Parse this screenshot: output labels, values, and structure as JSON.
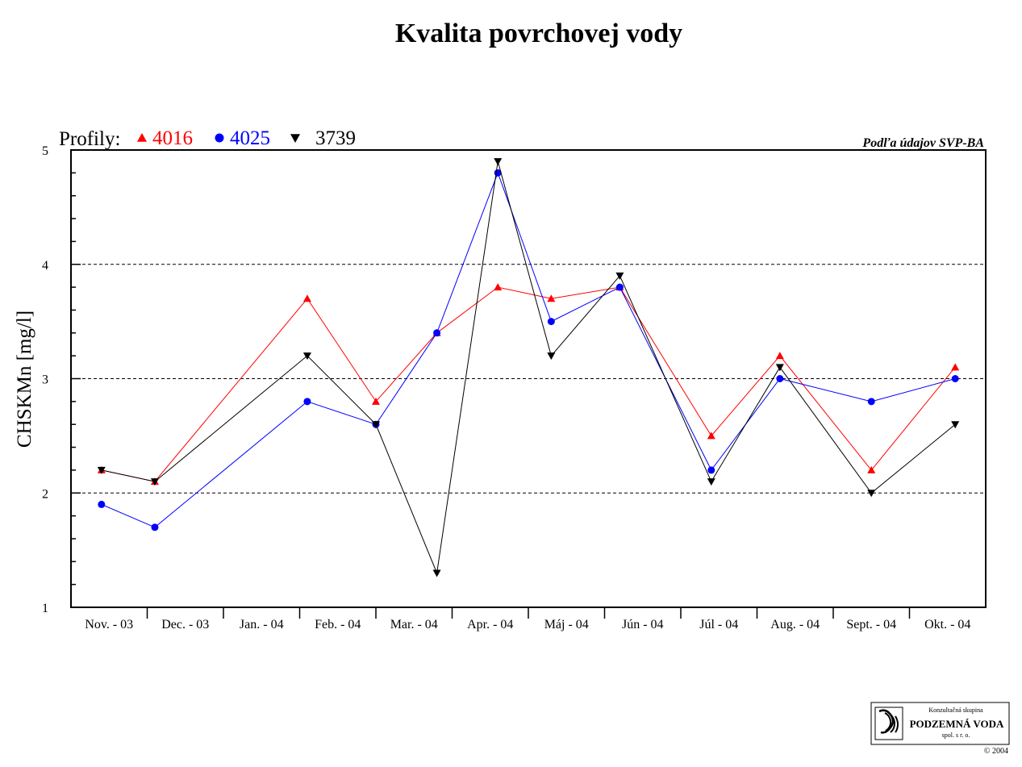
{
  "chart_data": {
    "type": "line",
    "title": "Kvalita povrchovej vody",
    "ylabel": "CHSKMn [mg/l]",
    "ylim": [
      1,
      5
    ],
    "yticks": [
      "1",
      "2",
      "3",
      "4",
      "5"
    ],
    "legend_prefix": "Profily:",
    "source_note": "Podľa údajov SVP-BA",
    "categories": [
      "Nov. - 03",
      "Dec. - 03",
      "Jan. - 04",
      "Feb. - 04",
      "Mar. - 04",
      "Apr. - 04",
      "Máj - 04",
      "Jún - 04",
      "Júl - 04",
      "Aug. - 04",
      "Sept. - 04",
      "Okt. - 04"
    ],
    "series": [
      {
        "name": "4016",
        "color": "#ff0000",
        "marker": "triangle-up",
        "points": [
          [
            0.4,
            2.2
          ],
          [
            1.1,
            2.1
          ],
          [
            3.1,
            3.7
          ],
          [
            4.0,
            2.8
          ],
          [
            4.8,
            3.4
          ],
          [
            5.6,
            3.8
          ],
          [
            6.3,
            3.7
          ],
          [
            7.2,
            3.8
          ],
          [
            8.4,
            2.5
          ],
          [
            9.3,
            3.2
          ],
          [
            10.5,
            2.2
          ],
          [
            11.6,
            3.1
          ]
        ]
      },
      {
        "name": "4025",
        "color": "#0000ff",
        "marker": "circle",
        "points": [
          [
            0.4,
            1.9
          ],
          [
            1.1,
            1.7
          ],
          [
            3.1,
            2.8
          ],
          [
            4.0,
            2.6
          ],
          [
            4.8,
            3.4
          ],
          [
            5.6,
            4.8
          ],
          [
            6.3,
            3.5
          ],
          [
            7.2,
            3.8
          ],
          [
            8.4,
            2.2
          ],
          [
            9.3,
            3.0
          ],
          [
            10.5,
            2.8
          ],
          [
            11.6,
            3.0
          ]
        ]
      },
      {
        "name": "3739",
        "color": "#000000",
        "marker": "triangle-down",
        "points": [
          [
            0.4,
            2.2
          ],
          [
            1.1,
            2.1
          ],
          [
            3.1,
            3.2
          ],
          [
            4.0,
            2.6
          ],
          [
            4.8,
            1.3
          ],
          [
            5.6,
            4.9
          ],
          [
            6.3,
            3.2
          ],
          [
            7.2,
            3.9
          ],
          [
            8.4,
            2.1
          ],
          [
            9.3,
            3.1
          ],
          [
            10.5,
            2.0
          ],
          [
            11.6,
            2.6
          ]
        ]
      }
    ],
    "grid_dashed_at": [
      2,
      3,
      4
    ]
  },
  "logo": {
    "line1": "Konzultačná skupina",
    "line2": "PODZEMNÁ VODA",
    "line3": "spol. s r. o.",
    "copyright": "© 2004"
  }
}
